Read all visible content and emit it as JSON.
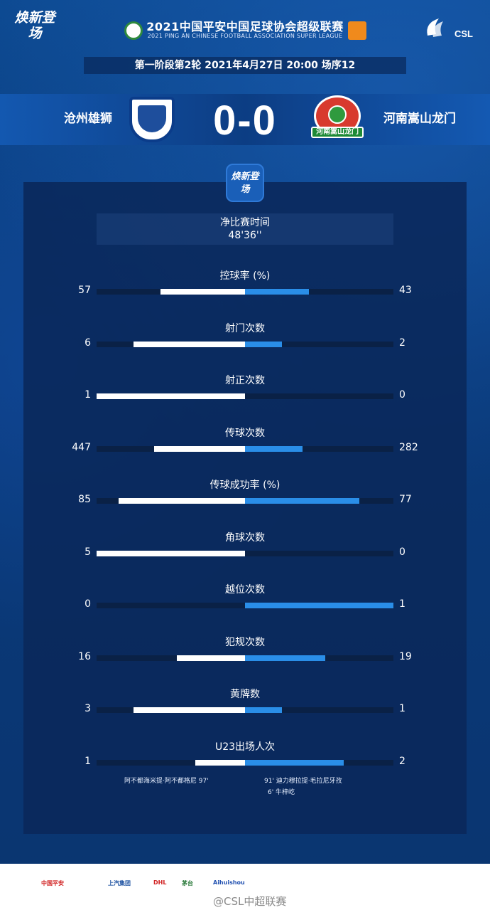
{
  "header": {
    "brand_logo": "焕新登场",
    "title": "2021中国平安中国足球协会超级联赛",
    "subtitle": "2021 PING AN CHINESE FOOTBALL ASSOCIATION SUPER LEAGUE",
    "league_mark": "CSL",
    "round_info": "第一阶段第2轮  2021年4月27日 20:00 场序12"
  },
  "match": {
    "home_team": "沧州雄狮",
    "away_team": "河南嵩山龙门",
    "score": "0-0",
    "away_crest_text": "河南嵩山龙门",
    "badge_text": "焕新登场"
  },
  "stats": {
    "net_time_label": "净比赛时间",
    "net_time_value": "48'36''",
    "rows": [
      {
        "label": "控球率 (%)",
        "home": "57",
        "away": "43",
        "home_frac": 0.57,
        "away_frac": 0.43
      },
      {
        "label": "射门次数",
        "home": "6",
        "away": "2",
        "home_frac": 0.75,
        "away_frac": 0.25
      },
      {
        "label": "射正次数",
        "home": "1",
        "away": "0",
        "home_frac": 1.0,
        "away_frac": 0.0
      },
      {
        "label": "传球次数",
        "home": "447",
        "away": "282",
        "home_frac": 0.613,
        "away_frac": 0.387
      },
      {
        "label": "传球成功率 (%)",
        "home": "85",
        "away": "77",
        "home_frac": 0.85,
        "away_frac": 0.77
      },
      {
        "label": "角球次数",
        "home": "5",
        "away": "0",
        "home_frac": 1.0,
        "away_frac": 0.0
      },
      {
        "label": "越位次数",
        "home": "0",
        "away": "1",
        "home_frac": 0.0,
        "away_frac": 1.0
      },
      {
        "label": "犯规次数",
        "home": "16",
        "away": "19",
        "home_frac": 0.457,
        "away_frac": 0.543
      },
      {
        "label": "黄牌数",
        "home": "3",
        "away": "1",
        "home_frac": 0.75,
        "away_frac": 0.25
      },
      {
        "label": "U23出场人次",
        "home": "1",
        "away": "2",
        "home_frac": 0.333,
        "away_frac": 0.667
      }
    ],
    "u23_home_note": "阿不都海米提·阿不都格尼  97'",
    "u23_away_note_1": "91'  迪力穆拉提·毛拉尼牙孜",
    "u23_away_note_2": "6'  牛梓屹"
  },
  "footer": {
    "sponsors": [
      "中国平安",
      "上汽集团",
      "DHL",
      "茅台",
      "Aihuishou",
      "CSL中超联赛"
    ],
    "weibo": "@CSL中超联赛"
  },
  "colors": {
    "home_bar": "#ffffff",
    "away_bar": "#2a8ee8",
    "panel": "#0a285a"
  }
}
